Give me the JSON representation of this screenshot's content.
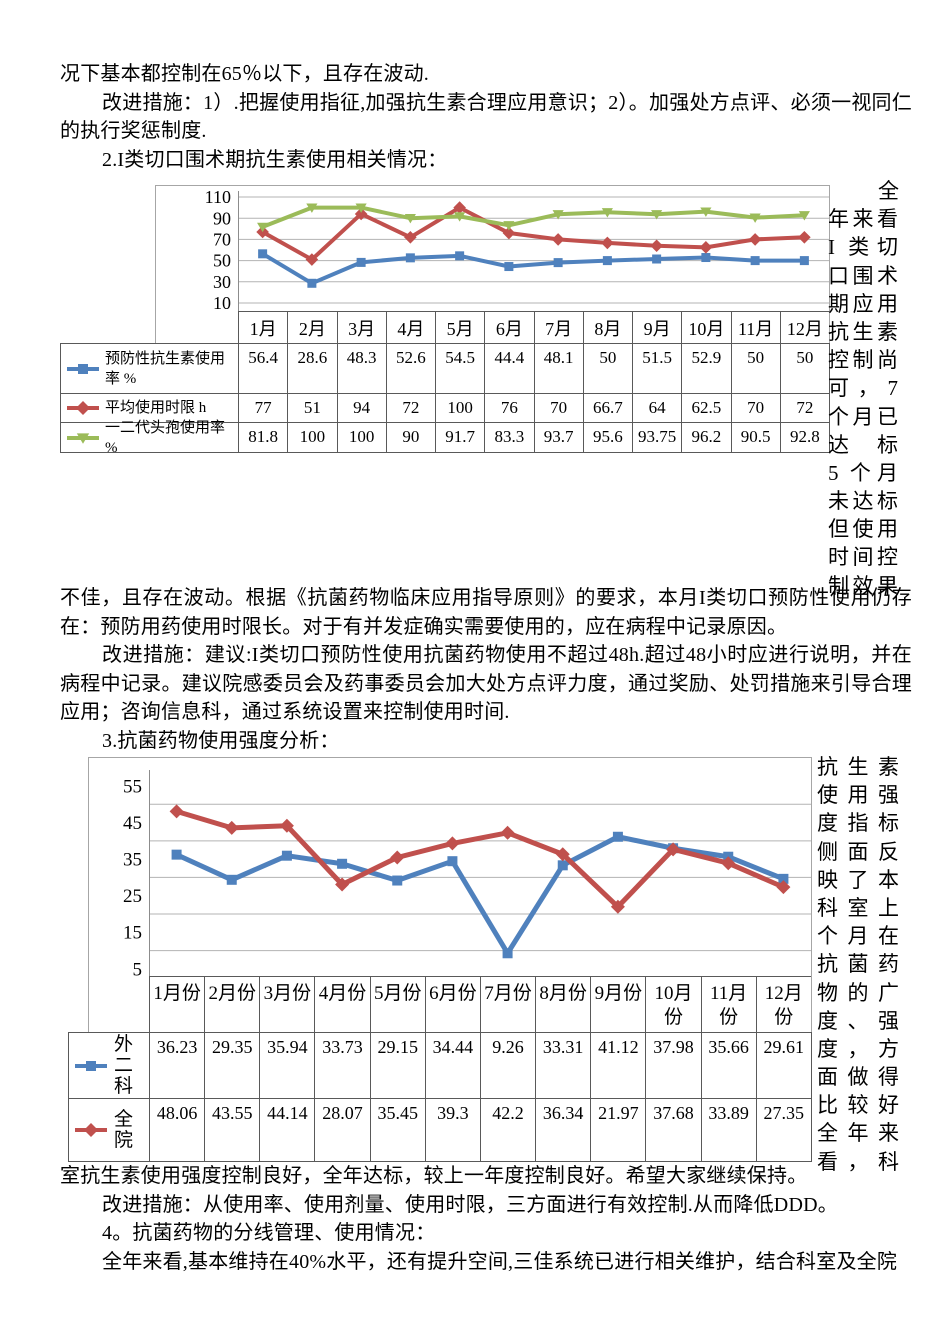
{
  "document": {
    "blocks": {
      "top": {
        "p1": "况下基本都控制在65％以下，且存在波动.",
        "p2": "改进措施：1）.把握使用指征,加强抗生素合理应用意识；2）。加强处方点评、必须一视同仁的执行奖惩制度.",
        "p3": "2.I类切口围术期抗生素使用相关情况："
      },
      "mid": {
        "p1": "不佳，且存在波动。根据《抗菌药物临床应用指导原则》的要求，本月I类切口预防性使用仍存在：预防用药使用时限长。对于有并发症确实需要使用的，应在病程中记录原因。",
        "p2": "改进措施：建议:I类切口预防性使用抗菌药物使用不超过48h.超过48小时应进行说明，并在病程中记录。建议院感委员会及药事委员会加大处方点评力度，通过奖励、处罚措施来引导合理应用；咨询信息科，通过系统设置来控制使用时间.",
        "p3": "3.抗菌药物使用强度分析："
      },
      "bottom": {
        "p1": "室抗生素使用强度控制良好，全年达标，较上一年度控制良好。希望大家继续保持。",
        "p2": "改进措施：从使用率、使用剂量、使用时限，三方面进行有效控制.从而降低DDD。",
        "p3": "4。抗菌药物的分线管理、使用情况：",
        "p4": "全年来看,基本维持在40%水平，还有提升空间,三佳系统已进行相关维护，结合科室及全院"
      }
    },
    "side_columns": {
      "first": {
        "lines": [
          "全",
          "年来看",
          "I 类切",
          "口围术",
          "期应用",
          "抗生素",
          "控制尚",
          "可，7",
          "个月已",
          "达 标",
          "5 个月",
          "未达标",
          "但使用",
          "时间控",
          "制效果"
        ]
      },
      "second": {
        "lines": [
          "抗生素",
          "使用强",
          "度指标",
          "侧面反",
          "映了本",
          "科室上",
          "个月在",
          "抗菌药",
          "物的广",
          "度、强",
          "度，方",
          "面做得",
          "比较好",
          "全年来",
          "看，科"
        ]
      }
    }
  },
  "chart_data": [
    {
      "type": "line",
      "title": "I类切口围术期抗生素使用相关情况",
      "categories": [
        "1月",
        "2月",
        "3月",
        "4月",
        "5月",
        "6月",
        "7月",
        "8月",
        "9月",
        "10月",
        "11月",
        "12月"
      ],
      "yticks": [
        110,
        90,
        70,
        50,
        30,
        10
      ],
      "gridlines": [
        110,
        90,
        70,
        50,
        30,
        10
      ],
      "ylim": [
        0,
        115
      ],
      "grid": true,
      "legend_position": "data-table-left",
      "series": [
        {
          "name": "预防性抗生素使用率 %",
          "color": "#4f81bd",
          "marker": "square",
          "values": [
            56.4,
            28.6,
            48.3,
            52.6,
            54.5,
            44.4,
            48.1,
            50,
            51.5,
            52.9,
            50,
            50
          ]
        },
        {
          "name": "平均使用时限 h",
          "color": "#c0504d",
          "marker": "diamond",
          "values": [
            77,
            51,
            94,
            72,
            100,
            76,
            70,
            66.7,
            64,
            62.5,
            70,
            72
          ]
        },
        {
          "name": "一二代头孢使用率 %",
          "color": "#9bbb59",
          "marker": "triangle",
          "values": [
            81.8,
            100,
            100,
            90,
            91.7,
            83.3,
            93.7,
            95.6,
            93.75,
            96.2,
            90.5,
            92.8
          ]
        }
      ]
    },
    {
      "type": "line",
      "title": "抗菌药物使用强度分析",
      "categories": [
        "1月份",
        "2月份",
        "3月份",
        "4月份",
        "5月份",
        "6月份",
        "7月份",
        "8月份",
        "9月份",
        "10月份",
        "11月份",
        "12月份"
      ],
      "yticks": [
        55,
        45,
        35,
        25,
        15,
        5
      ],
      "gridlines": [
        50,
        40,
        30,
        20,
        10
      ],
      "ylim": [
        0,
        60
      ],
      "grid": true,
      "legend_position": "data-table-left",
      "series": [
        {
          "name": "外二科",
          "color": "#4f81bd",
          "marker": "square",
          "values": [
            36.23,
            29.35,
            35.94,
            33.73,
            29.15,
            34.44,
            9.26,
            33.31,
            41.12,
            37.98,
            35.66,
            29.61
          ]
        },
        {
          "name": "全院",
          "color": "#c0504d",
          "marker": "diamond",
          "values": [
            48.06,
            43.55,
            44.14,
            28.07,
            35.45,
            39.3,
            42.2,
            36.34,
            21.97,
            37.68,
            33.89,
            27.35
          ]
        }
      ]
    }
  ]
}
